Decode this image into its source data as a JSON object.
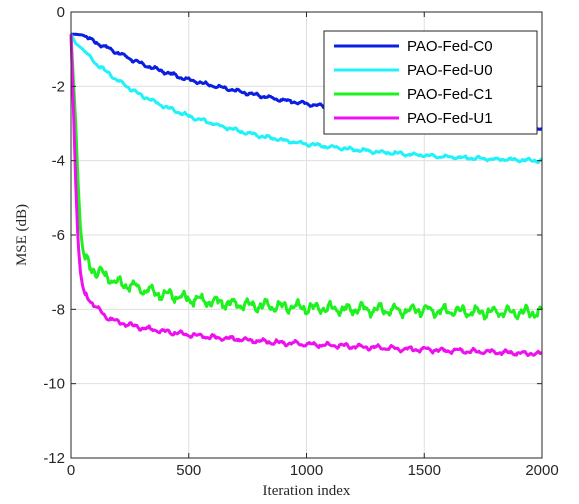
{
  "chart_data": {
    "type": "line",
    "title": "",
    "xlabel": "Iteration index",
    "ylabel": "MSE (dB)",
    "xlim": [
      0,
      2000
    ],
    "ylim": [
      -12,
      0
    ],
    "xticks": [
      0,
      500,
      1000,
      1500,
      2000
    ],
    "yticks": [
      -12,
      -10,
      -8,
      -6,
      -4,
      -2,
      0
    ],
    "xtick_labels": [
      "0",
      "500",
      "1000",
      "1500",
      "2000"
    ],
    "ytick_labels": [
      "-12",
      "-10",
      "-8",
      "-6",
      "-4",
      "-2",
      "0"
    ],
    "grid": true,
    "legend_position": "top-right",
    "series": [
      {
        "name": "PAO-Fed-C0",
        "color": "#0a1fe0",
        "noise": 0.03,
        "x": [
          0,
          20,
          50,
          100,
          200,
          300,
          400,
          500,
          600,
          700,
          800,
          900,
          1000,
          1100,
          1200,
          1300,
          1400,
          1500,
          1600,
          1700,
          1800,
          1900,
          2000
        ],
        "y": [
          -0.6,
          -0.6,
          -0.62,
          -0.8,
          -1.1,
          -1.4,
          -1.62,
          -1.82,
          -1.98,
          -2.12,
          -2.25,
          -2.37,
          -2.47,
          -2.56,
          -2.64,
          -2.72,
          -2.79,
          -2.86,
          -2.92,
          -2.98,
          -3.04,
          -3.09,
          -3.13
        ]
      },
      {
        "name": "PAO-Fed-U0",
        "color": "#1ff2f8",
        "noise": 0.03,
        "x": [
          0,
          20,
          50,
          100,
          200,
          300,
          400,
          500,
          600,
          700,
          800,
          900,
          1000,
          1100,
          1200,
          1300,
          1400,
          1500,
          1600,
          1700,
          1800,
          1900,
          2000
        ],
        "y": [
          -0.6,
          -0.85,
          -1.0,
          -1.35,
          -1.85,
          -2.25,
          -2.55,
          -2.8,
          -3.0,
          -3.18,
          -3.33,
          -3.45,
          -3.55,
          -3.63,
          -3.7,
          -3.76,
          -3.81,
          -3.86,
          -3.9,
          -3.93,
          -3.96,
          -3.98,
          -4.0
        ]
      },
      {
        "name": "PAO-Fed-C1",
        "color": "#1ef21e",
        "noise": 0.1,
        "x": [
          0,
          10,
          20,
          30,
          40,
          50,
          60,
          80,
          100,
          150,
          200,
          300,
          400,
          500,
          600,
          700,
          800,
          900,
          1000,
          1200,
          1400,
          1600,
          1800,
          2000
        ],
        "y": [
          -0.6,
          -1.8,
          -3.0,
          -4.6,
          -5.8,
          -6.4,
          -6.65,
          -6.85,
          -6.95,
          -7.1,
          -7.3,
          -7.45,
          -7.6,
          -7.72,
          -7.8,
          -7.86,
          -7.9,
          -7.93,
          -7.96,
          -8.0,
          -8.03,
          -8.05,
          -8.07,
          -8.1
        ]
      },
      {
        "name": "PAO-Fed-U1",
        "color": "#ef10ef",
        "noise": 0.04,
        "x": [
          0,
          10,
          20,
          30,
          40,
          50,
          60,
          80,
          100,
          150,
          200,
          300,
          400,
          500,
          600,
          700,
          800,
          900,
          1000,
          1200,
          1400,
          1600,
          1800,
          2000
        ],
        "y": [
          -0.6,
          -2.5,
          -4.6,
          -6.2,
          -7.0,
          -7.4,
          -7.6,
          -7.75,
          -7.9,
          -8.2,
          -8.35,
          -8.5,
          -8.6,
          -8.68,
          -8.75,
          -8.8,
          -8.85,
          -8.9,
          -8.94,
          -9.0,
          -9.06,
          -9.11,
          -9.15,
          -9.2
        ]
      }
    ]
  }
}
